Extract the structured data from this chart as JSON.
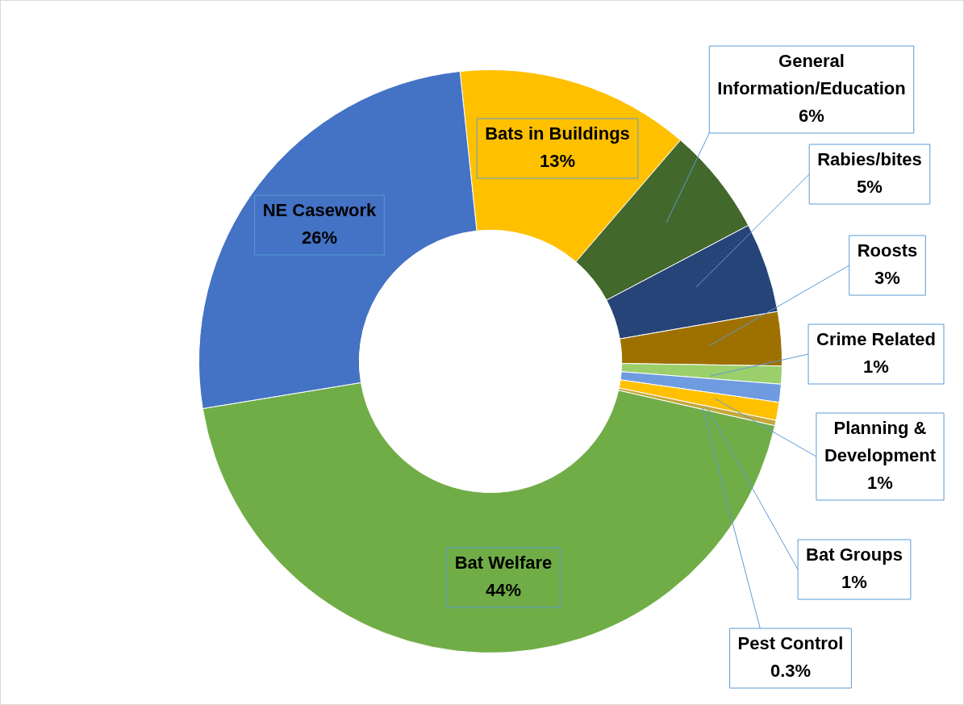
{
  "chart_data": {
    "type": "donut",
    "categories": [
      "Bats in Buildings",
      "General Information/Education",
      "Rabies/bites",
      "Roosts",
      "Crime Related",
      "Planning & Development",
      "Bat Groups",
      "Pest Control",
      "Bat Welfare",
      "NE Casework"
    ],
    "values": [
      13,
      6,
      5,
      3,
      1,
      1,
      1,
      0.3,
      44,
      26
    ],
    "value_labels": [
      "13%",
      "6%",
      "5%",
      "3%",
      "1%",
      "1%",
      "1%",
      "0.3%",
      "44%",
      "26%"
    ],
    "colors": [
      "#ffc000",
      "#43682b",
      "#264478",
      "#9e7000",
      "#9bcf6b",
      "#6f9be0",
      "#ffc000",
      "#c4a83a",
      "#70ad47",
      "#4472c4"
    ],
    "legend": false
  }
}
